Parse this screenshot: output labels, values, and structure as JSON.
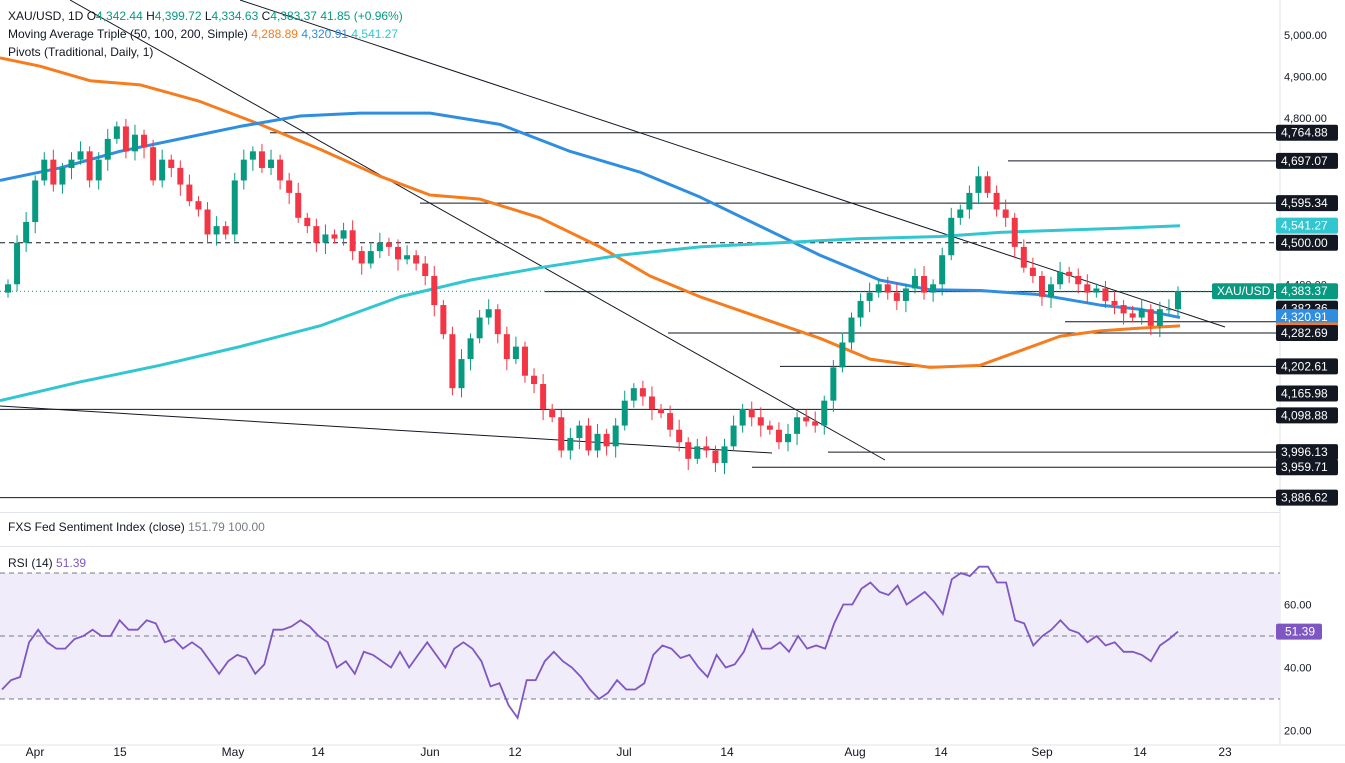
{
  "header": {
    "symbol": "XAU/USD, 1D",
    "o_label": "O",
    "o_value": "4,342.44",
    "h_label": "H",
    "h_value": "4,399.72",
    "l_label": "L",
    "l_value": "4,334.63",
    "c_label": "C",
    "c_value": "4,383.37",
    "change": "41.85 (+0.96%)",
    "ma_label": "Moving Average Triple (50, 100, 200, Simple)",
    "ma50_value": "4,288.89",
    "ma100_value": "4,320.91",
    "ma200_value": "4,541.27",
    "pivots_label": "Pivots (Traditional, Daily, 1)",
    "fed_label": "FXS Fed Sentiment Index (close)",
    "fed_value1": "151.79",
    "fed_value2": "100.00",
    "rsi_label": "RSI (14)",
    "rsi_value": "51.39"
  },
  "colors": {
    "up": "#089981",
    "down": "#f23645",
    "ma50": "#f57c1f",
    "ma100": "#2f8ee0",
    "ma200": "#32c6d1",
    "rsi": "#7e57c2",
    "rsi_band": "#f1ecfa"
  },
  "chart_data": [
    {
      "type": "candlestick",
      "ylim": [
        3870,
        5020
      ],
      "y_ticks": [
        "5,000.00",
        "4,900.00",
        "4,800.00",
        "4,400.00"
      ],
      "x_ticks": [
        "Apr",
        "15",
        "May",
        "14",
        "Jun",
        "12",
        "Jul",
        "14",
        "Aug",
        "14",
        "Sep",
        "14",
        "23"
      ],
      "price_labels": [
        {
          "text": "4,764.88",
          "value": 4764.88,
          "style": "dark"
        },
        {
          "text": "4,697.07",
          "value": 4697.07,
          "style": "dark"
        },
        {
          "text": "4,595.34",
          "value": 4595.34,
          "style": "dark"
        },
        {
          "text": "4,541.27",
          "value": 4541.27,
          "style": "ma200"
        },
        {
          "text": "4,500.00",
          "value": 4500.0,
          "style": "dark"
        },
        {
          "text": "XAU/USD",
          "value": 4383.37,
          "style": "symbol"
        },
        {
          "text": "4,383.37",
          "value": 4383.37,
          "style": "up"
        },
        {
          "text": "4,382.36",
          "value": 4382.36,
          "style": "dark"
        },
        {
          "text": "4,320.91",
          "value": 4320.91,
          "style": "ma100"
        },
        {
          "text": "4,288.89",
          "value": 4288.89,
          "style": "ma50"
        },
        {
          "text": "4,282.69",
          "value": 4282.69,
          "style": "dark"
        },
        {
          "text": "4,202.61",
          "value": 4202.61,
          "style": "dark"
        },
        {
          "text": "4,165.98",
          "value": 4165.98,
          "style": "dark"
        },
        {
          "text": "4,098.88",
          "value": 4098.88,
          "style": "dark"
        },
        {
          "text": "3,996.13",
          "value": 3996.13,
          "style": "dark"
        },
        {
          "text": "3,959.71",
          "value": 3959.71,
          "style": "dark"
        },
        {
          "text": "3,886.62",
          "value": 3886.62,
          "style": "dark"
        }
      ],
      "last_close": 4383.37
    },
    {
      "type": "line",
      "name": "RSI (14)",
      "ylim": [
        15,
        70
      ],
      "y_ticks": [
        "60.00",
        "40.00",
        "20.00"
      ],
      "levels": [
        70,
        50,
        30
      ],
      "last_label": "51.39",
      "values": [
        33,
        36,
        37,
        48,
        52,
        48,
        46,
        46,
        49,
        50,
        52,
        50,
        50,
        55,
        52,
        52,
        55,
        54,
        48,
        49,
        46,
        48,
        46,
        42,
        38,
        42,
        44,
        43,
        38,
        41,
        52,
        52,
        53,
        55,
        53,
        50,
        48,
        40,
        42,
        38,
        45,
        44,
        42,
        40,
        45,
        40,
        44,
        48,
        44,
        40,
        46,
        48,
        46,
        42,
        34,
        35,
        28,
        24,
        36,
        36,
        42,
        45,
        42,
        40,
        37,
        33,
        30,
        32,
        36,
        33,
        33,
        35,
        44,
        47,
        46,
        43,
        44,
        40,
        37,
        44,
        40,
        41,
        45,
        52,
        46,
        46,
        48,
        45,
        50,
        46,
        47,
        46,
        54,
        60,
        60,
        65,
        67,
        64,
        63,
        66,
        60,
        62,
        64,
        61,
        57,
        68,
        70,
        69,
        72,
        72,
        67,
        67,
        55,
        54,
        47,
        50,
        52,
        55,
        52,
        51,
        48,
        50,
        47,
        48,
        45,
        45,
        44,
        42,
        47,
        49,
        51.39
      ]
    }
  ]
}
